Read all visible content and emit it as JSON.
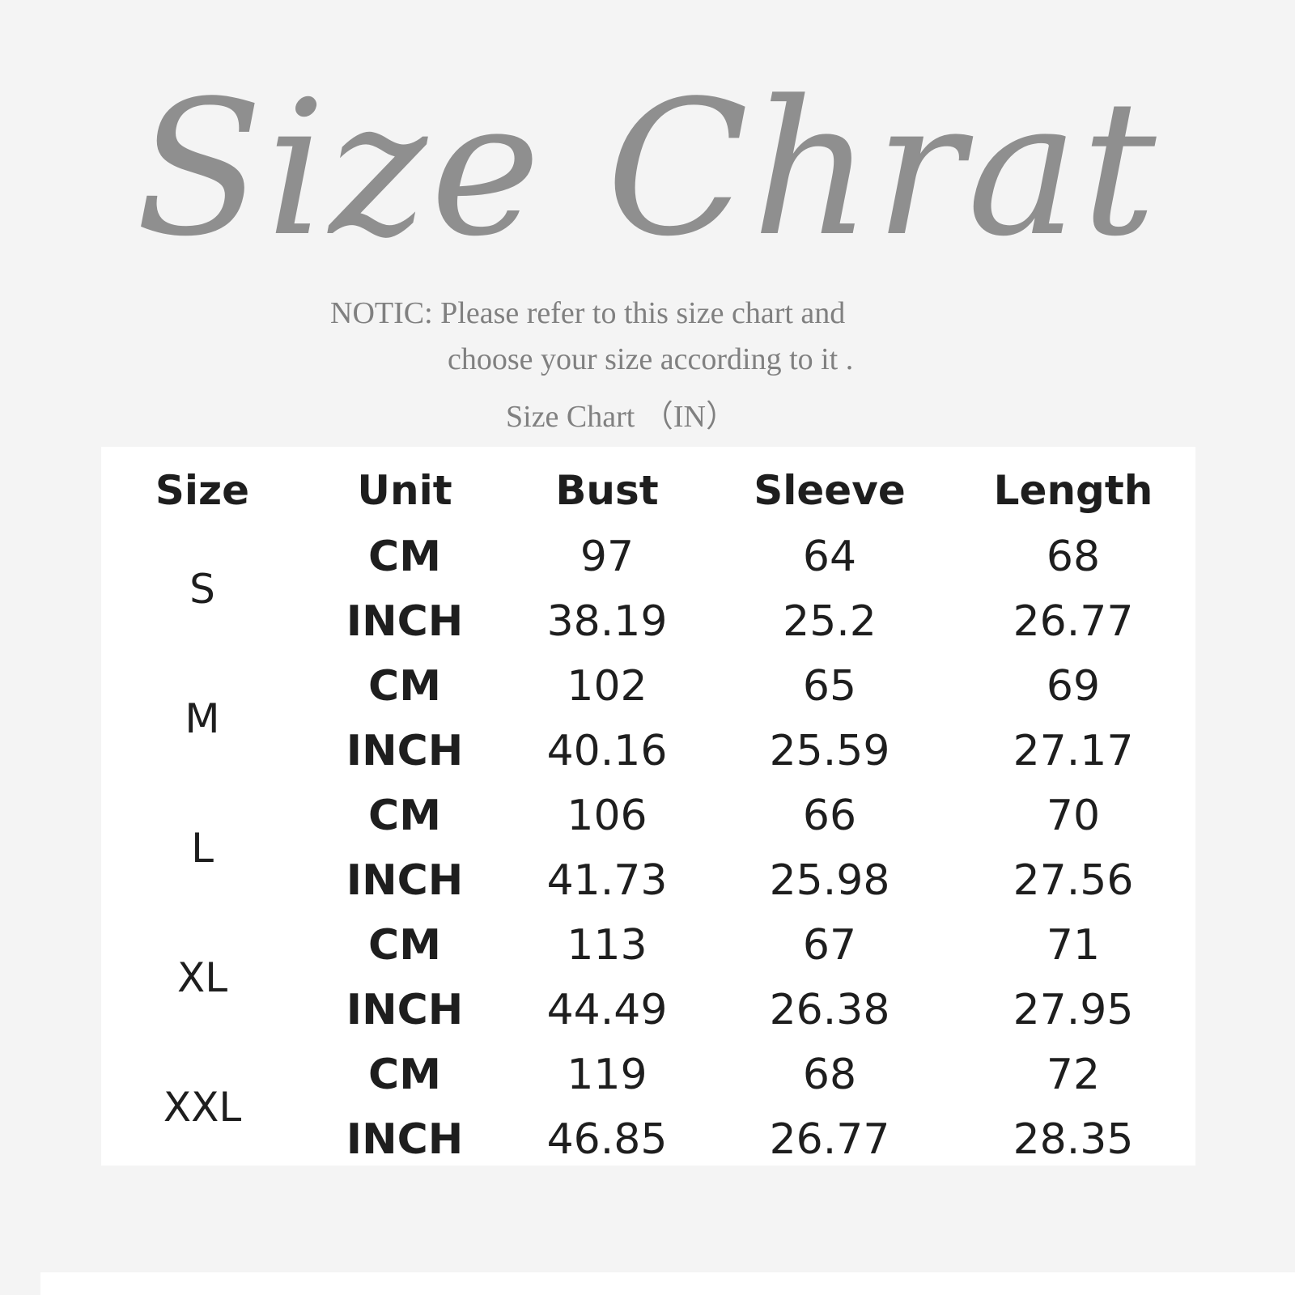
{
  "title": "Size Chrat",
  "notice": {
    "line1": "NOTIC: Please refer to this size chart and",
    "line2": "choose your size according to it .",
    "line3": "Size Chart （IN）"
  },
  "table": {
    "headers": [
      "Size",
      "Unit",
      "Bust",
      "Sleeve",
      "Length"
    ],
    "rows": [
      {
        "size": "S",
        "cm": [
          "CM",
          "97",
          "64",
          "68"
        ],
        "inch": [
          "INCH",
          "38.19",
          "25.2",
          "26.77"
        ]
      },
      {
        "size": "M",
        "cm": [
          "CM",
          "102",
          "65",
          "69"
        ],
        "inch": [
          "INCH",
          "40.16",
          "25.59",
          "27.17"
        ]
      },
      {
        "size": "L",
        "cm": [
          "CM",
          "106",
          "66",
          "70"
        ],
        "inch": [
          "INCH",
          "41.73",
          "25.98",
          "27.56"
        ]
      },
      {
        "size": "XL",
        "cm": [
          "CM",
          "113",
          "67",
          "71"
        ],
        "inch": [
          "INCH",
          "44.49",
          "26.38",
          "27.95"
        ]
      },
      {
        "size": "XXL",
        "cm": [
          "CM",
          "119",
          "68",
          "72"
        ],
        "inch": [
          "INCH",
          "46.85",
          "26.77",
          "28.35"
        ]
      }
    ]
  },
  "colors": {
    "background": "#f4f4f4",
    "title": "#8f8f8f",
    "notice": "#808080",
    "table_background": "#ffffff",
    "table_text": "#1e1e1e"
  }
}
